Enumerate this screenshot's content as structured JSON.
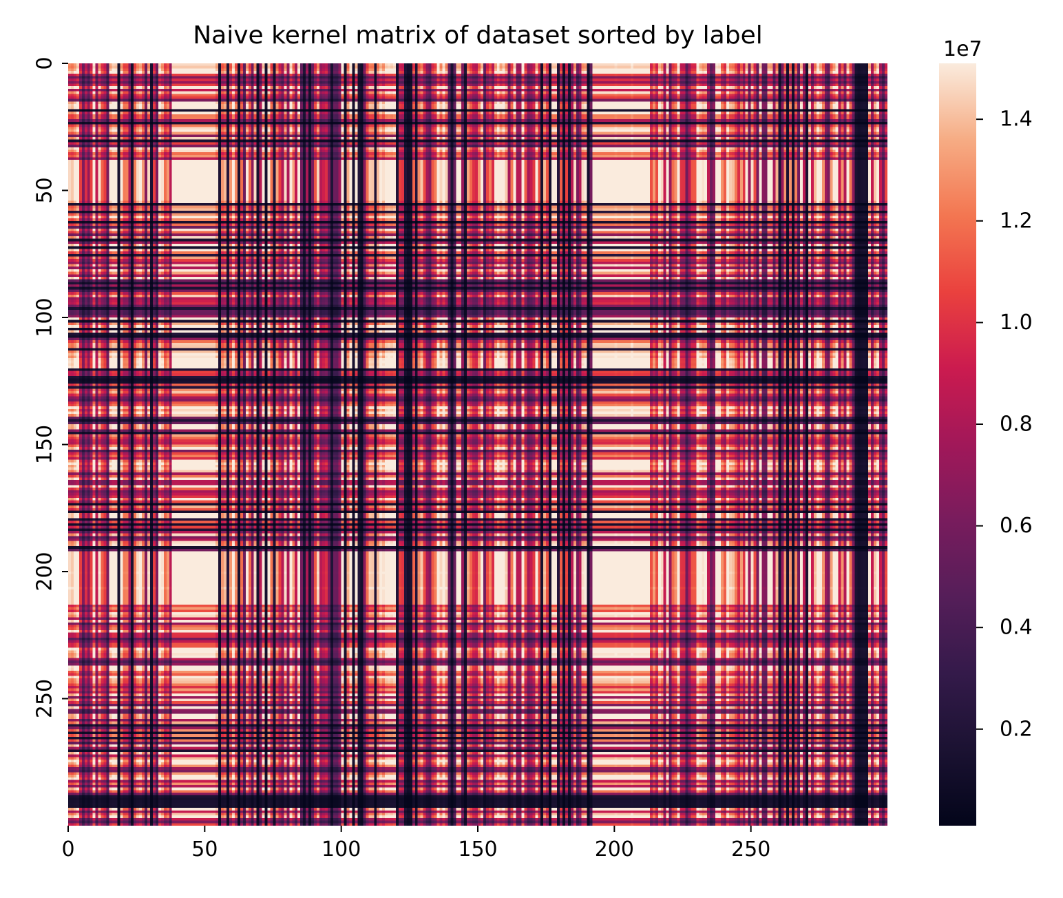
{
  "chart_data": {
    "type": "heatmap",
    "title": "Naive kernel matrix of dataset sorted by label",
    "xlabel": "",
    "ylabel": "",
    "n_rows": 300,
    "n_cols": 300,
    "xticks": [
      {
        "value": 0,
        "label": "0"
      },
      {
        "value": 50,
        "label": "50"
      },
      {
        "value": 100,
        "label": "100"
      },
      {
        "value": 150,
        "label": "150"
      },
      {
        "value": 200,
        "label": "200"
      },
      {
        "value": 250,
        "label": "250"
      }
    ],
    "yticks": [
      {
        "value": 0,
        "label": "0"
      },
      {
        "value": 50,
        "label": "50"
      },
      {
        "value": 100,
        "label": "100"
      },
      {
        "value": 150,
        "label": "150"
      },
      {
        "value": 200,
        "label": "200"
      },
      {
        "value": 250,
        "label": "250"
      }
    ],
    "colormap": "rocket",
    "colorbar": {
      "vmin": 100000,
      "vmax": 15100000,
      "exponent_label": "1e7",
      "ticks": [
        {
          "value": 2000000,
          "label": "0.2"
        },
        {
          "value": 4000000,
          "label": "0.4"
        },
        {
          "value": 6000000,
          "label": "0.6"
        },
        {
          "value": 8000000,
          "label": "0.8"
        },
        {
          "value": 10000000,
          "label": "1.0"
        },
        {
          "value": 12000000,
          "label": "1.2"
        },
        {
          "value": 14000000,
          "label": "1.4"
        }
      ]
    },
    "low_value_indices": [
      18,
      23,
      30,
      41,
      55,
      58,
      62,
      69,
      72,
      75,
      86,
      88,
      96,
      101,
      104,
      106,
      107,
      112,
      120,
      123,
      124,
      125,
      127,
      140,
      145,
      173,
      176,
      179,
      181,
      183,
      190,
      260,
      263,
      265,
      270,
      288,
      289,
      290,
      291,
      292
    ],
    "high_similarity_blocks": [
      {
        "start": 38,
        "end": 53
      },
      {
        "start": 192,
        "end": 212
      }
    ]
  }
}
